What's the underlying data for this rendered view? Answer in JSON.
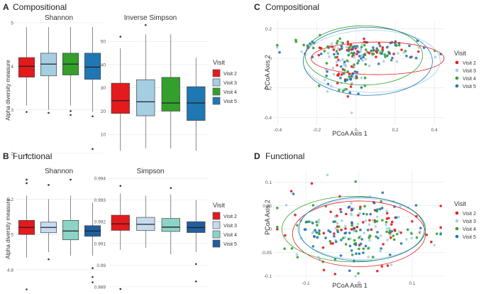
{
  "panel_labels": {
    "A": "A",
    "B": "B",
    "C": "C",
    "D": "D"
  },
  "panel_titles": {
    "A": "Compositional",
    "B": "Functional",
    "C": "Compositional",
    "D": "Functional"
  },
  "legend": {
    "title": "Visit",
    "items": [
      "Visit 2",
      "Visit 3",
      "Visit 4",
      "Visit 5"
    ],
    "box_colors_A": [
      "#e41a1c",
      "#a6cee3",
      "#33a02c",
      "#1f78b4"
    ],
    "box_colors_B": [
      "#e41a1c",
      "#c6dbef",
      "#8dd3c7",
      "#1f5f9f"
    ],
    "point_colors": [
      "#e41a1c",
      "#a6cee3",
      "#33a02c",
      "#1f78b4"
    ]
  },
  "chart_data": [
    {
      "id": "A-shannon",
      "type": "box",
      "title": "Shannon",
      "ylabel": "Alpha diversity measure",
      "ylim": [
        1.9,
        5.0
      ],
      "yticks": [
        2,
        3,
        4,
        5
      ],
      "boxes": [
        {
          "name": "Visit 2",
          "q1": 3.75,
          "median": 4.0,
          "q3": 4.2,
          "whislo": 3.1,
          "whishi": 4.9,
          "outliers": [
            2.95,
            1.97
          ]
        },
        {
          "name": "Visit 3",
          "q1": 3.78,
          "median": 4.05,
          "q3": 4.3,
          "whislo": 3.0,
          "whishi": 4.9,
          "outliers": [
            2.93
          ]
        },
        {
          "name": "Visit 4",
          "q1": 3.8,
          "median": 4.05,
          "q3": 4.3,
          "whislo": 3.1,
          "whishi": 4.9,
          "outliers": [
            2.97,
            2.88
          ]
        },
        {
          "name": "Visit 5",
          "q1": 3.7,
          "median": 3.98,
          "q3": 4.3,
          "whislo": 2.95,
          "whishi": 4.9,
          "outliers": [
            2.85,
            2.1
          ]
        }
      ]
    },
    {
      "id": "A-invsimpson",
      "type": "box",
      "title": "Inverse Simpson",
      "ylim": [
        0,
        58
      ],
      "yticks": [
        10,
        20,
        30,
        40,
        50
      ],
      "boxes": [
        {
          "name": "Visit 2",
          "q1": 19,
          "median": 24.5,
          "q3": 32,
          "whislo": 3,
          "whishi": 47,
          "outliers": [
            52
          ]
        },
        {
          "name": "Visit 3",
          "q1": 18,
          "median": 24,
          "q3": 33.5,
          "whislo": 4,
          "whishi": 53,
          "outliers": [
            57
          ]
        },
        {
          "name": "Visit 4",
          "q1": 20,
          "median": 23.5,
          "q3": 34.5,
          "whislo": 4,
          "whishi": 53,
          "outliers": []
        },
        {
          "name": "Visit 5",
          "q1": 16,
          "median": 23.5,
          "q3": 30.5,
          "whislo": 3,
          "whishi": 43,
          "outliers": []
        }
      ]
    },
    {
      "id": "B-shannon",
      "type": "box",
      "title": "Shannon",
      "ylabel": "Alpha diversity measure",
      "ylim": [
        4.68,
        5.33
      ],
      "yticks": [
        4.8,
        5.0,
        5.2
      ],
      "boxes": [
        {
          "name": "Visit 2",
          "q1": 5.0,
          "median": 5.04,
          "q3": 5.08,
          "whislo": 4.87,
          "whishi": 5.22,
          "outliers": [
            5.31,
            5.29,
            4.69
          ]
        },
        {
          "name": "Visit 3",
          "q1": 5.01,
          "median": 5.04,
          "q3": 5.07,
          "whislo": 4.9,
          "whishi": 5.2,
          "outliers": [
            5.28,
            4.86
          ]
        },
        {
          "name": "Visit 4",
          "q1": 4.97,
          "median": 5.02,
          "q3": 5.08,
          "whislo": 4.88,
          "whishi": 5.22,
          "outliers": [
            5.31
          ]
        },
        {
          "name": "Visit 5",
          "q1": 4.99,
          "median": 5.02,
          "q3": 5.05,
          "whislo": 4.88,
          "whishi": 5.18,
          "outliers": [
            4.81,
            4.76,
            4.73
          ]
        }
      ]
    },
    {
      "id": "B-simpson",
      "type": "box",
      "title": "Simpson",
      "ylim": [
        0.9888,
        0.9941
      ],
      "yticks": [
        0.989,
        0.99,
        0.991,
        0.992,
        0.993,
        0.994
      ],
      "boxes": [
        {
          "name": "Visit 2",
          "q1": 0.9916,
          "median": 0.9919,
          "q3": 0.9923,
          "whislo": 0.9907,
          "whishi": 0.9933,
          "outliers": [
            0.99365,
            0.9889
          ]
        },
        {
          "name": "Visit 3",
          "q1": 0.9916,
          "median": 0.99188,
          "q3": 0.9922,
          "whislo": 0.9908,
          "whishi": 0.9932,
          "outliers": []
        },
        {
          "name": "Visit 4",
          "q1": 0.99155,
          "median": 0.99175,
          "q3": 0.99215,
          "whislo": 0.9905,
          "whishi": 0.99325,
          "outliers": [
            0.99355
          ]
        },
        {
          "name": "Visit 5",
          "q1": 0.9915,
          "median": 0.99173,
          "q3": 0.992,
          "whislo": 0.9906,
          "whishi": 0.993,
          "outliers": [
            0.99005,
            0.98925
          ]
        }
      ]
    },
    {
      "id": "C",
      "type": "scatter",
      "xlabel": "PCoA Axis 1",
      "ylabel": "PCoA Axis 2",
      "xlim": [
        -0.42,
        0.45
      ],
      "ylim": [
        -0.45,
        0.25
      ],
      "xticks": [
        -0.4,
        -0.2,
        0.0,
        0.2,
        0.4
      ],
      "yticks": [
        -0.4,
        -0.2,
        0.0,
        0.2
      ],
      "ellipses": [
        {
          "series": "Visit 2",
          "cx": 0.11,
          "cy": 0.0,
          "rx": 0.34,
          "ry": 0.11,
          "angle": 0
        },
        {
          "series": "Visit 3",
          "cx": 0.08,
          "cy": -0.02,
          "rx": 0.35,
          "ry": 0.21,
          "angle": 0
        },
        {
          "series": "Visit 4",
          "cx": 0.04,
          "cy": 0.02,
          "rx": 0.3,
          "ry": 0.2,
          "angle": 0
        },
        {
          "series": "Visit 5",
          "cx": 0.06,
          "cy": -0.02,
          "rx": 0.33,
          "ry": 0.23,
          "angle": 0
        }
      ],
      "seed": 11,
      "n": 60,
      "clouds": [
        {
          "cx": -0.05,
          "cy": 0.07,
          "sx": 0.14,
          "sy": 0.03
        },
        {
          "cx": 0.12,
          "cy": 0.04,
          "sx": 0.13,
          "sy": 0.03
        },
        {
          "cx": -0.04,
          "cy": -0.08,
          "sx": 0.06,
          "sy": 0.1
        }
      ]
    },
    {
      "id": "D",
      "type": "scatter",
      "xlabel": "PCoA Axis 1",
      "ylabel": "PCoA Axis 2",
      "xlim": [
        -0.16,
        0.16
      ],
      "ylim": [
        -0.105,
        0.125
      ],
      "xticks": [
        -0.1,
        0.0,
        0.1
      ],
      "yticks": [
        -0.1,
        -0.05,
        0.0,
        0.05,
        0.1
      ],
      "ellipses": [
        {
          "series": "Visit 2",
          "cx": 0.0,
          "cy": -0.01,
          "rx": 0.125,
          "ry": 0.07,
          "angle": 0
        },
        {
          "series": "Visit 3",
          "cx": 0.005,
          "cy": 0.0,
          "rx": 0.12,
          "ry": 0.065,
          "angle": 0
        },
        {
          "series": "Visit 4",
          "cx": -0.01,
          "cy": 0.0,
          "rx": 0.135,
          "ry": 0.07,
          "angle": 0
        },
        {
          "series": "Visit 5",
          "cx": 0.005,
          "cy": 0.0,
          "rx": 0.118,
          "ry": 0.068,
          "angle": 0
        }
      ],
      "seed": 29,
      "n": 60,
      "clouds": [
        {
          "cx": 0.0,
          "cy": 0.0,
          "sx": 0.06,
          "sy": 0.035
        }
      ]
    }
  ]
}
